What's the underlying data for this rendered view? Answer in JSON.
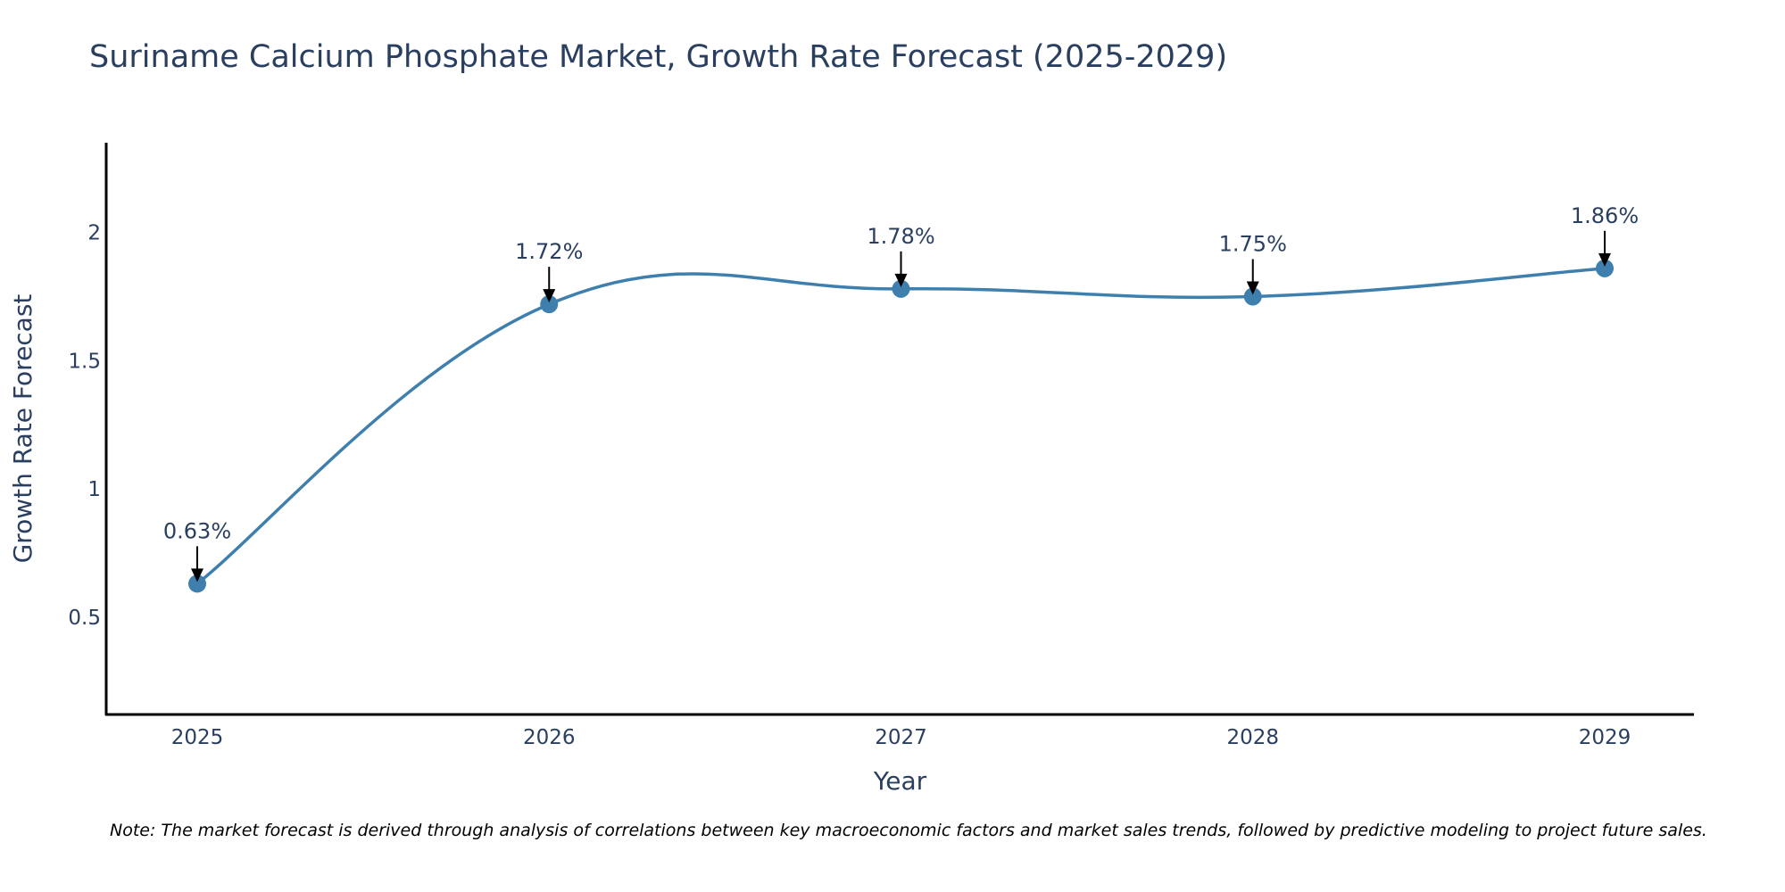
{
  "chart_data": {
    "type": "line",
    "title": "Suriname Calcium Phosphate Market, Growth Rate Forecast (2025-2029)",
    "xlabel": "Year",
    "ylabel": "Growth Rate Forecast",
    "x": [
      "2025",
      "2026",
      "2027",
      "2028",
      "2029"
    ],
    "series": [
      {
        "values": [
          0.63,
          1.72,
          1.78,
          1.75,
          1.86
        ],
        "labels": [
          "0.63%",
          "1.72%",
          "1.78%",
          "1.75%",
          "1.86%"
        ],
        "color": "#3f7fad"
      }
    ],
    "yticks": [
      0.5,
      1,
      1.5,
      2
    ],
    "ylim": [
      0.12,
      2.35
    ],
    "grid": false,
    "legend": "none",
    "note": "Note: The market forecast is derived through analysis of correlations between key macroeconomic factors and market sales trends, followed by predictive modeling to project future sales."
  }
}
